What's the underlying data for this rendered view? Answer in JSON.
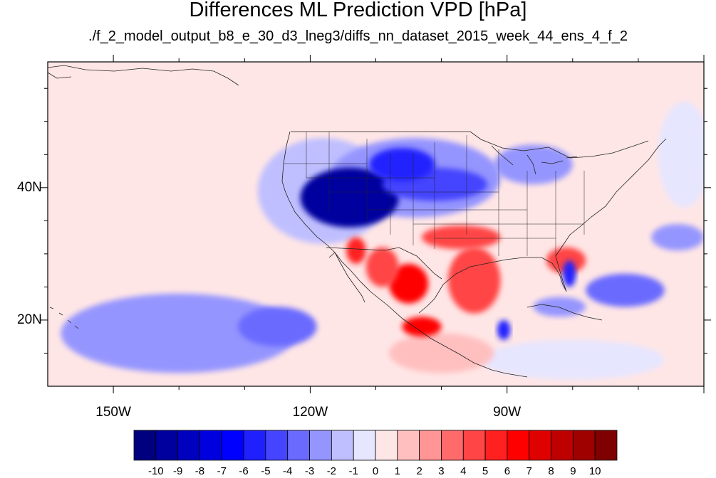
{
  "title": "Differences ML Prediction VPD [hPa]",
  "subtitle": "./f_2_model_output_b8_e_30_d3_lneg3/diffs_nn_dataset_2015_week_44_ens_4_f_2",
  "map": {
    "projection": "cylindrical equidistant",
    "lon_range": [
      -160,
      -60
    ],
    "lat_range": [
      10,
      59
    ],
    "lon_labels": [
      {
        "lon": -150,
        "text": "150W"
      },
      {
        "lon": -120,
        "text": "120W"
      },
      {
        "lon": -90,
        "text": "90W"
      }
    ],
    "lat_labels": [
      {
        "lat": 40,
        "text": "40N"
      },
      {
        "lat": 20,
        "text": "20N"
      }
    ],
    "background_value": 0.5,
    "anomalies": [
      {
        "lon": -114,
        "lat": 38.5,
        "rlon": 7.5,
        "rlat": 4.5,
        "value": -10
      },
      {
        "lon": -106,
        "lat": 43.5,
        "rlon": 5,
        "rlat": 2.5,
        "value": -6
      },
      {
        "lon": -101,
        "lat": 40.5,
        "rlon": 8,
        "rlat": 2.5,
        "value": -5
      },
      {
        "lon": -104,
        "lat": 41.5,
        "rlon": 13,
        "rlat": 6,
        "value": -3
      },
      {
        "lon": -118,
        "lat": 39.5,
        "rlon": 10,
        "rlat": 8,
        "value": -2
      },
      {
        "lon": -86,
        "lat": 43.5,
        "rlon": 6,
        "rlat": 3,
        "value": -3
      },
      {
        "lon": -95,
        "lat": 26,
        "rlon": 4,
        "rlat": 5,
        "value": 4
      },
      {
        "lon": -97,
        "lat": 32.5,
        "rlon": 6,
        "rlat": 1.8,
        "value": 4
      },
      {
        "lon": -81,
        "lat": 29,
        "rlon": 3,
        "rlat": 2,
        "value": 4
      },
      {
        "lon": -105,
        "lat": 25.5,
        "rlon": 3,
        "rlat": 3,
        "value": 6
      },
      {
        "lon": -109,
        "lat": 28,
        "rlon": 2.5,
        "rlat": 3,
        "value": 4
      },
      {
        "lon": -103,
        "lat": 19,
        "rlon": 3,
        "rlat": 1.5,
        "value": 6
      },
      {
        "lon": -113,
        "lat": 30.5,
        "rlon": 1.5,
        "rlat": 2,
        "value": 5
      },
      {
        "lon": -140,
        "lat": 18,
        "rlon": 18,
        "rlat": 6,
        "value": -3
      },
      {
        "lon": -125,
        "lat": 19,
        "rlon": 6,
        "rlat": 3,
        "value": -4
      },
      {
        "lon": -72,
        "lat": 24.5,
        "rlon": 6,
        "rlat": 2.5,
        "value": -4
      },
      {
        "lon": -82,
        "lat": 22,
        "rlon": 4,
        "rlat": 1.5,
        "value": -3
      },
      {
        "lon": -90.5,
        "lat": 18.5,
        "rlon": 1,
        "rlat": 1.5,
        "value": -6
      },
      {
        "lon": -80.5,
        "lat": 27,
        "rlon": 1,
        "rlat": 2,
        "value": -6
      },
      {
        "lon": -64,
        "lat": 32.5,
        "rlon": 4,
        "rlat": 2,
        "value": -3
      },
      {
        "lon": -100,
        "lat": 15,
        "rlon": 8,
        "rlat": 3,
        "value": 1
      },
      {
        "lon": -80,
        "lat": 14,
        "rlon": 14,
        "rlat": 3,
        "value": -1
      },
      {
        "lon": -150,
        "lat": 52,
        "rlon": 10,
        "rlat": 6,
        "value": 0.5
      },
      {
        "lon": -63,
        "lat": 45,
        "rlon": 4,
        "rlat": 8,
        "value": -1
      }
    ]
  },
  "colorbar": {
    "levels": [
      "-10",
      "-9",
      "-8",
      "-7",
      "-6",
      "-5",
      "-4",
      "-3",
      "-2",
      "-1",
      "0",
      "1",
      "2",
      "3",
      "4",
      "5",
      "6",
      "7",
      "8",
      "9",
      "10"
    ],
    "colors": [
      "#00007f",
      "#00009f",
      "#0000bf",
      "#0000df",
      "#0000ff",
      "#2020ff",
      "#4545ff",
      "#6a6aff",
      "#9595ff",
      "#bfbfff",
      "#e6e6ff",
      "#ffe6e6",
      "#ffbfbf",
      "#ff9595",
      "#ff6a6a",
      "#ff4545",
      "#ff2020",
      "#ff0000",
      "#df0000",
      "#bf0000",
      "#9f0000",
      "#7f0000"
    ]
  }
}
